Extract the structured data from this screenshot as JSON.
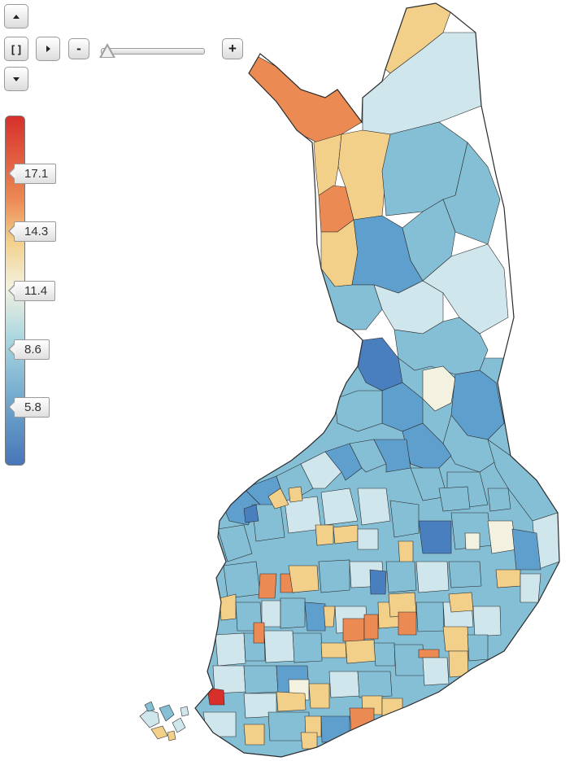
{
  "controls": {
    "pan_up": "pan-up-arrow",
    "pan_down": "pan-down-arrow",
    "pan_right": "pan-right-arrow",
    "reset": "[ ]",
    "zoom_out": "-",
    "zoom_in": "+",
    "zoom_level": 0
  },
  "legend": {
    "ticks": [
      "17.1",
      "14.3",
      "11.4",
      "8.6",
      "5.8"
    ],
    "color_stops": [
      "#d7302b",
      "#ec8a54",
      "#f3d08a",
      "#f3f1df",
      "#a9d6e0",
      "#6fa6cd",
      "#4876b8"
    ]
  },
  "map": {
    "colors": {
      "outline": "#2b2b2b",
      "red": "#d7302b",
      "orange": "#ec8a54",
      "peach": "#f3d08a",
      "pale": "#f3f1df",
      "lightblue": "#cfe6ec",
      "midblue": "#84bfd6",
      "blue": "#5f9fcd",
      "darkblue": "#4a7fbf"
    }
  }
}
